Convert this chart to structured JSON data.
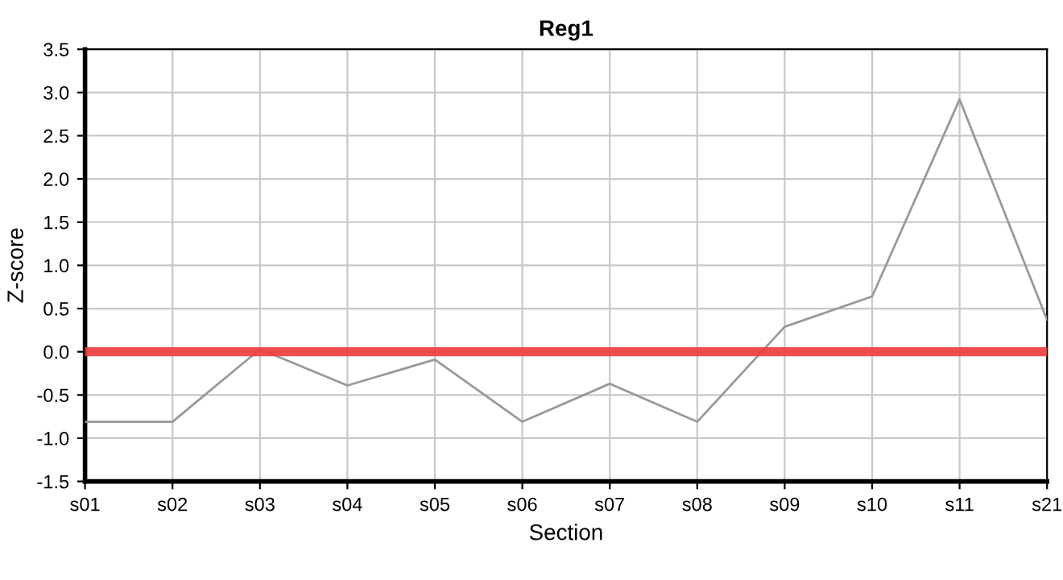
{
  "chart_data": {
    "type": "line",
    "title": "Reg1",
    "xlabel": "Section",
    "ylabel": "Z-score",
    "categories": [
      "s01",
      "s02",
      "s03",
      "s04",
      "s05",
      "s06",
      "s07",
      "s08",
      "s09",
      "s10",
      "s11",
      "s21"
    ],
    "series": [
      {
        "color": "#999999",
        "values": [
          -0.81,
          -0.81,
          0.03,
          -0.39,
          -0.09,
          -0.81,
          -0.37,
          -0.81,
          0.29,
          0.64,
          2.92,
          0.37
        ]
      }
    ],
    "ylim": [
      -1.5,
      3.5
    ],
    "yticks": [
      {
        "value": -1.5,
        "label": "-1.5"
      },
      {
        "value": -1.0,
        "label": "-1.0"
      },
      {
        "value": -0.5,
        "label": "-0.5"
      },
      {
        "value": 0.0,
        "label": "0.0"
      },
      {
        "value": 0.5,
        "label": "0.5"
      },
      {
        "value": 1.0,
        "label": "1.0"
      },
      {
        "value": 1.5,
        "label": "1.5"
      },
      {
        "value": 2.0,
        "label": "2.0"
      },
      {
        "value": 2.5,
        "label": "2.5"
      },
      {
        "value": 3.0,
        "label": "3.0"
      },
      {
        "value": 3.5,
        "label": "3.5"
      }
    ],
    "ref_lines": [
      {
        "axis": "y",
        "value": 0,
        "color": "#f03c3c"
      }
    ],
    "grid": true,
    "marker": "none",
    "line_style": "solid",
    "legend": false
  }
}
